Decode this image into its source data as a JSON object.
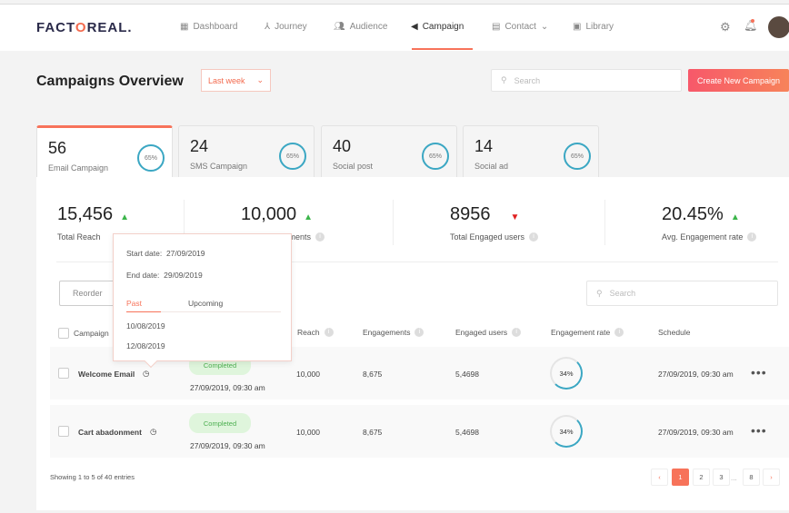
{
  "brand": {
    "logo": "FACTOREAL."
  },
  "nav": {
    "items": [
      {
        "label": "Dashboard",
        "icon": "grid-icon"
      },
      {
        "label": "Journey",
        "icon": "branch-icon"
      },
      {
        "label": "Audience",
        "icon": "users-icon"
      },
      {
        "label": "Campaign",
        "icon": "megaphone-icon",
        "active": true
      },
      {
        "label": "Contact",
        "icon": "contact-card-icon"
      },
      {
        "label": "Library",
        "icon": "image-icon"
      }
    ]
  },
  "header": {
    "title": "Campaigns Overview",
    "period": "Last week",
    "search_placeholder": "Search",
    "create_label": "Create New Campaign"
  },
  "tabs": [
    {
      "count": "56",
      "label": "Email Campaign",
      "pct": "65%"
    },
    {
      "count": "24",
      "label": "SMS Campaign",
      "pct": "65%"
    },
    {
      "count": "40",
      "label": "Social post",
      "pct": "65%"
    },
    {
      "count": "14",
      "label": "Social ad",
      "pct": "65%"
    }
  ],
  "stats": [
    {
      "value": "15,456",
      "label": "Total Reach",
      "trend": "up"
    },
    {
      "value": "10,000",
      "label": "Total Engagements",
      "trend": "up"
    },
    {
      "value": "8956",
      "label": "Total Engaged users",
      "trend": "down"
    },
    {
      "value": "20.45%",
      "label": "Avg. Engagement rate",
      "trend": "up"
    }
  ],
  "toolbar": {
    "reorder": "Reorder",
    "search_placeholder": "Search"
  },
  "table": {
    "columns": [
      "Campaign",
      "Reach",
      "Engagements",
      "Engaged users",
      "Engagement rate",
      "Schedule"
    ],
    "rows": [
      {
        "name": "Welcome Email",
        "status": "Completed",
        "date": "27/09/2019, 09:30 am",
        "reach": "10,000",
        "engagements": "8,675",
        "engaged_users": "5,4698",
        "rate": "34%",
        "schedule": "27/09/2019, 09:30 am"
      },
      {
        "name": "Cart abadonment",
        "status": "Completed",
        "date": "27/09/2019, 09:30 am",
        "reach": "10,000",
        "engagements": "8,675",
        "engaged_users": "5,4698",
        "rate": "34%",
        "schedule": "27/09/2019, 09:30 am"
      }
    ]
  },
  "popover": {
    "start_label": "Start date:",
    "start": "27/09/2019",
    "end_label": "End date:",
    "end": "29/09/2019",
    "tab_past": "Past",
    "tab_upcoming": "Upcoming",
    "dates": [
      "10/08/2019",
      "12/08/2019"
    ]
  },
  "footer": {
    "entries": "Showing 1 to 5 of 40 entries",
    "pages": [
      "1",
      "2",
      "3",
      "8"
    ],
    "ellipsis": "..."
  },
  "colors": {
    "accent": "#f7735a",
    "ring": "#3ba7c3",
    "up": "#3bb54a",
    "down": "#e02020"
  }
}
